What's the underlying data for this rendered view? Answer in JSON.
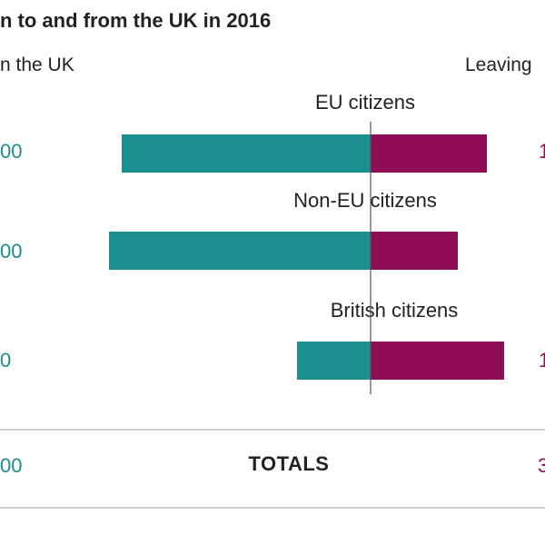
{
  "chart_data": {
    "type": "bar",
    "title": "n to and from the UK in 2016",
    "left_header": "n the UK",
    "right_header": "Leaving",
    "colors": {
      "arriving": "#1a8f8f",
      "leaving": "#8e0e56",
      "axis": "#555555"
    },
    "categories": [
      "EU citizens",
      "Non-EU citizens",
      "British citizens"
    ],
    "series": [
      {
        "name": "",
        "values": [
          274,
          288,
          81
        ]
      },
      {
        "name": "",
        "values": [
          128,
          96,
          147
        ]
      }
    ],
    "left_value_labels": [
      "00",
      "00",
      "0"
    ],
    "right_value_labels": [
      "1",
      "",
      "1"
    ],
    "totals": {
      "label": "TOTALS",
      "left": "00",
      "right": "3"
    }
  }
}
